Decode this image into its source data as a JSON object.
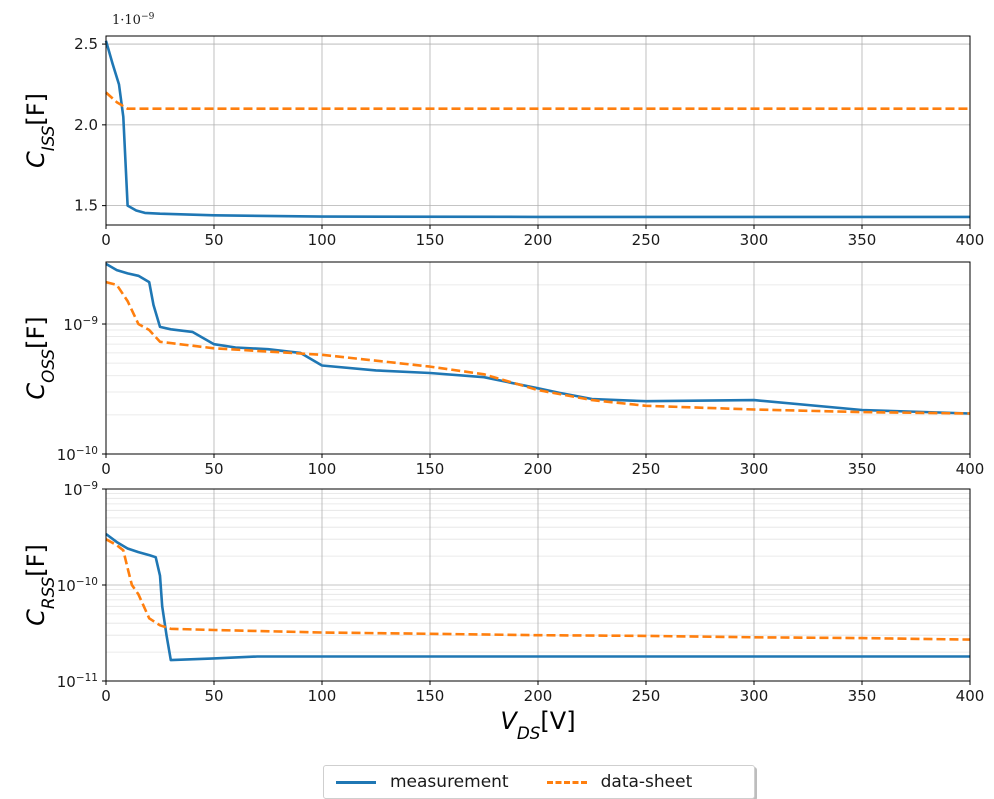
{
  "chart_data": [
    {
      "type": "line",
      "ylabel": "C_ISS[F]",
      "ylabel_main": "C",
      "ylabel_sub": "ISS",
      "ylabel_unit": "[F]",
      "y_offset_text": "1·10",
      "y_offset_exp": "−9",
      "yscale": "linear",
      "xlim": [
        0,
        400
      ],
      "ylim": [
        1.38,
        2.55
      ],
      "xticks": [
        0,
        50,
        100,
        150,
        200,
        250,
        300,
        350,
        400
      ],
      "yticks": [
        1.5,
        2.0,
        2.5
      ],
      "ytick_labels": [
        "1.5",
        "2.0",
        "2.5"
      ],
      "grid": true,
      "series": [
        {
          "name": "measurement",
          "color": "#1f77b4",
          "style": "solid",
          "x": [
            0,
            3,
            6,
            8,
            10,
            14,
            18,
            25,
            50,
            100,
            200,
            300,
            400
          ],
          "y": [
            2.52,
            2.38,
            2.25,
            2.05,
            1.5,
            1.47,
            1.455,
            1.45,
            1.44,
            1.432,
            1.43,
            1.43,
            1.43
          ]
        },
        {
          "name": "data-sheet",
          "color": "#ff7f0e",
          "style": "dashed",
          "x": [
            0,
            5,
            10,
            400
          ],
          "y": [
            2.2,
            2.14,
            2.1,
            2.1
          ]
        }
      ]
    },
    {
      "type": "line",
      "ylabel": "C_OSS[F]",
      "ylabel_main": "C",
      "ylabel_sub": "OSS",
      "ylabel_unit": "[F]",
      "yscale": "log",
      "xlim": [
        0,
        400
      ],
      "ylim": [
        1e-10,
        3e-09
      ],
      "xticks": [
        0,
        50,
        100,
        150,
        200,
        250,
        300,
        350,
        400
      ],
      "yticks_major": [
        1e-10,
        1e-09
      ],
      "ytick_labels": [
        {
          "base": "10",
          "exp": "−10"
        },
        {
          "base": "10",
          "exp": "−9"
        }
      ],
      "grid": true,
      "series": [
        {
          "name": "measurement",
          "color": "#1f77b4",
          "style": "solid",
          "x": [
            0,
            5,
            10,
            15,
            20,
            22,
            25,
            30,
            40,
            50,
            60,
            75,
            90,
            100,
            125,
            150,
            175,
            200,
            210,
            225,
            250,
            300,
            350,
            400
          ],
          "y": [
            2.9e-09,
            2.6e-09,
            2.45e-09,
            2.35e-09,
            2.1e-09,
            1.4e-09,
            9.5e-10,
            9.1e-10,
            8.7e-10,
            7e-10,
            6.6e-10,
            6.4e-10,
            6e-10,
            4.8e-10,
            4.4e-10,
            4.2e-10,
            3.9e-10,
            3.2e-10,
            2.95e-10,
            2.65e-10,
            2.55e-10,
            2.6e-10,
            2.18e-10,
            2.05e-10
          ]
        },
        {
          "name": "data-sheet",
          "color": "#ff7f0e",
          "style": "dashed",
          "x": [
            0,
            5,
            10,
            15,
            20,
            25,
            50,
            100,
            150,
            175,
            200,
            225,
            250,
            300,
            350,
            400
          ],
          "y": [
            2.1e-09,
            2e-09,
            1.5e-09,
            1e-09,
            9e-10,
            7.3e-10,
            6.5e-10,
            5.8e-10,
            4.7e-10,
            4.1e-10,
            3.1e-10,
            2.6e-10,
            2.35e-10,
            2.2e-10,
            2.1e-10,
            2.05e-10
          ]
        }
      ]
    },
    {
      "type": "line",
      "ylabel": "C_RSS[F]",
      "ylabel_main": "C",
      "ylabel_sub": "RSS",
      "ylabel_unit": "[F]",
      "yscale": "log",
      "xlabel": "V_DS[V]",
      "xlabel_main": "V",
      "xlabel_sub": "DS",
      "xlabel_unit": "[V]",
      "xlim": [
        0,
        400
      ],
      "ylim": [
        1e-11,
        1e-09
      ],
      "xticks": [
        0,
        50,
        100,
        150,
        200,
        250,
        300,
        350,
        400
      ],
      "yticks_major": [
        1e-11,
        1e-10,
        1e-09
      ],
      "ytick_labels": [
        {
          "base": "10",
          "exp": "−11"
        },
        {
          "base": "10",
          "exp": "−10"
        },
        {
          "base": "10",
          "exp": "−9"
        }
      ],
      "grid": true,
      "series": [
        {
          "name": "measurement",
          "color": "#1f77b4",
          "style": "solid",
          "x": [
            0,
            5,
            10,
            15,
            20,
            23,
            25,
            26,
            28,
            30,
            50,
            70,
            100,
            200,
            300,
            400
          ],
          "y": [
            3.4e-10,
            2.8e-10,
            2.4e-10,
            2.2e-10,
            2.05e-10,
            1.95e-10,
            1.25e-10,
            6e-11,
            3e-11,
            1.65e-11,
            1.72e-11,
            1.8e-11,
            1.8e-11,
            1.8e-11,
            1.8e-11,
            1.8e-11
          ]
        },
        {
          "name": "data-sheet",
          "color": "#ff7f0e",
          "style": "dashed",
          "x": [
            0,
            5,
            8,
            10,
            12,
            15,
            20,
            25,
            30,
            50,
            100,
            150,
            200,
            250,
            300,
            350,
            400
          ],
          "y": [
            3e-10,
            2.6e-10,
            2.3e-10,
            1.5e-10,
            1e-10,
            8e-11,
            4.5e-11,
            3.8e-11,
            3.5e-11,
            3.4e-11,
            3.2e-11,
            3.1e-11,
            3e-11,
            2.95e-11,
            2.85e-11,
            2.8e-11,
            2.7e-11
          ]
        }
      ]
    }
  ],
  "legend": {
    "items": [
      {
        "label": "measurement",
        "color": "#1f77b4",
        "style": "solid"
      },
      {
        "label": "data-sheet",
        "color": "#ff7f0e",
        "style": "dashed"
      }
    ]
  }
}
